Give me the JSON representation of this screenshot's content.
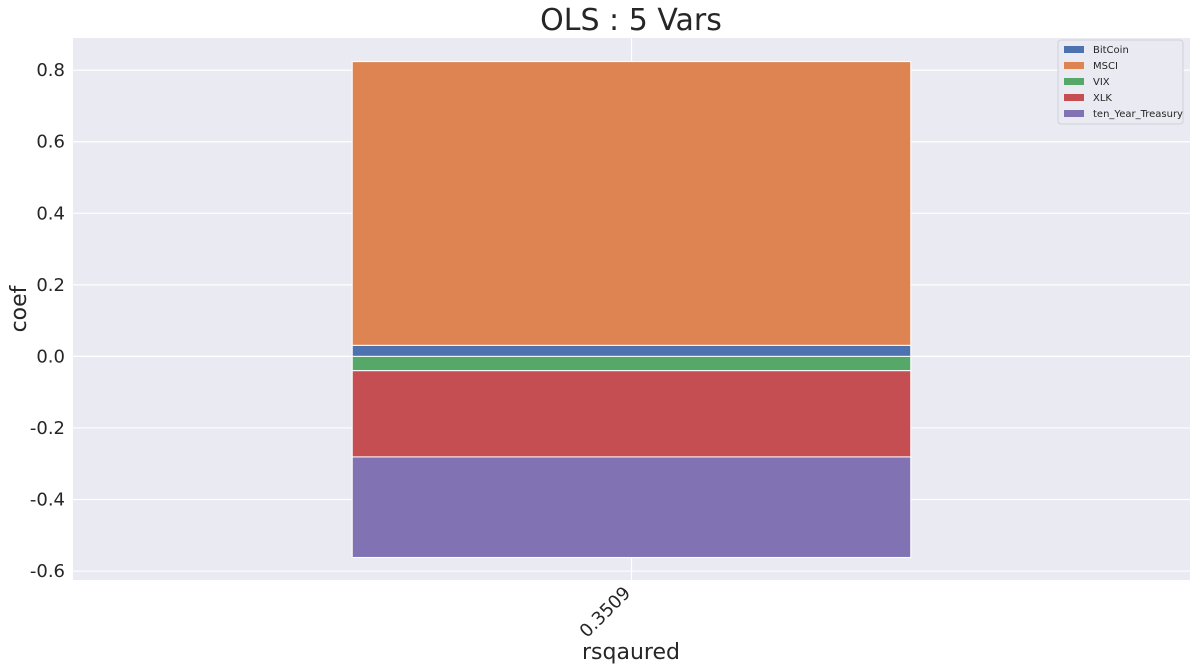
{
  "chart_data": {
    "type": "bar",
    "stacked": true,
    "title": "OLS : 5 Vars",
    "xlabel": "rsqaured",
    "ylabel": "coef",
    "categories": [
      "0.3509"
    ],
    "ylim": [
      -0.625,
      0.89
    ],
    "yticks": [
      -0.6,
      -0.4,
      -0.2,
      0.0,
      0.2,
      0.4,
      0.6,
      0.8
    ],
    "ytick_labels": [
      "-0.6",
      "-0.4",
      "-0.2",
      "0.0",
      "0.2",
      "0.4",
      "0.6",
      "0.8"
    ],
    "grid": true,
    "legend_position": "top-right",
    "series": [
      {
        "name": "BitCoin",
        "values": [
          0.031
        ],
        "color": "#4c72b0"
      },
      {
        "name": "MSCI",
        "values": [
          0.793
        ],
        "color": "#dd8452"
      },
      {
        "name": "VIX",
        "values": [
          -0.04
        ],
        "color": "#55a868"
      },
      {
        "name": "XLK",
        "values": [
          -0.241
        ],
        "color": "#c44e52"
      },
      {
        "name": "ten_Year_Treasury",
        "values": [
          -0.281
        ],
        "color": "#8172b3"
      }
    ],
    "colors": {
      "plot_background": "#eaeaf2",
      "grid": "#ffffff",
      "text": "#262626"
    }
  }
}
